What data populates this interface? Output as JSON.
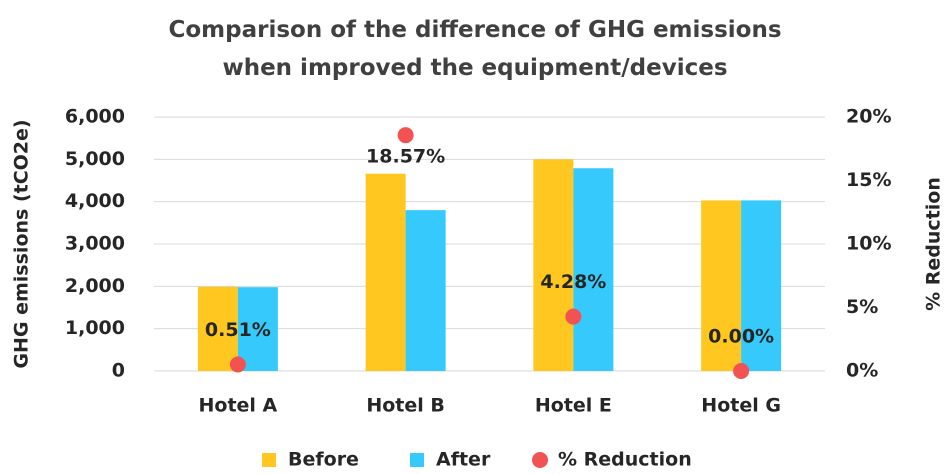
{
  "chart_data": {
    "type": "bar",
    "title": "Comparison of the difference of GHG emissions when improved the equipment/devices",
    "categories": [
      "Hotel A",
      "Hotel B",
      "Hotel E",
      "Hotel G"
    ],
    "series": [
      {
        "name": "Before",
        "color": "#ffc71f",
        "values": [
          1990,
          4660,
          5000,
          4030
        ]
      },
      {
        "name": "After",
        "color": "#36c9fb",
        "values": [
          1980,
          3800,
          4790,
          4030
        ]
      },
      {
        "name": "% Reduction",
        "color": "#f25252",
        "type": "scatter",
        "axis": "y2",
        "values": [
          0.51,
          18.57,
          4.28,
          0.0
        ],
        "value_labels": [
          "0.51%",
          "18.57%",
          "4.28%",
          "0.00%"
        ]
      }
    ],
    "ylabel": "GHG emissions (tCO2e)",
    "y2label": "% Reduction",
    "ylim": [
      0,
      6000
    ],
    "yticks": [
      0,
      {
        "value": 1000,
        "label": "1,000"
      },
      {
        "value": 2000,
        "label": "2,000"
      },
      {
        "value": 3000,
        "label": "3,000"
      },
      {
        "value": 4000,
        "label": "4,000"
      },
      {
        "value": 5000,
        "label": "5,000"
      },
      {
        "value": 6000,
        "label": "6,000"
      }
    ],
    "y2lim": [
      0,
      20
    ],
    "y2ticks": [
      {
        "value": 0,
        "label": "0%"
      },
      {
        "value": 5,
        "label": "5%"
      },
      {
        "value": 10,
        "label": "10%"
      },
      {
        "value": 15,
        "label": "15%"
      },
      {
        "value": 20,
        "label": "20%"
      }
    ],
    "grid": true,
    "legend": "bottom"
  }
}
